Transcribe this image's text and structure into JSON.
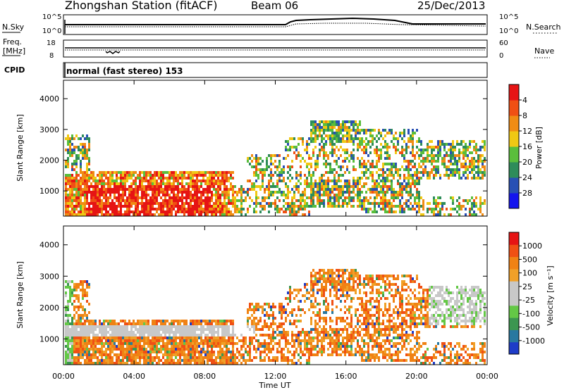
{
  "header": {
    "title": "Zhongshan Station (fitACF)",
    "beam": "Beam 06",
    "date": "25/Dec/2013"
  },
  "noise_panel": {
    "left_label": "N.Sky",
    "right_label": "N.Search",
    "ticks_left": [
      "10^5",
      "10^0"
    ],
    "ticks_right": [
      "10^5",
      "10^0"
    ]
  },
  "freq_panel": {
    "left_label": [
      "Freq.",
      "[MHz]"
    ],
    "right_label": "Nave",
    "ticks_left": [
      "18",
      "8"
    ],
    "ticks_right": [
      "60",
      "0"
    ]
  },
  "cpid": {
    "label": "CPID",
    "value": "normal (fast stereo) 153"
  },
  "chart_data": [
    {
      "type": "heatmap",
      "name": "power",
      "ylabel": "Slant Range [km]",
      "ylim": [
        180,
        4600
      ],
      "yticks": [
        "1000",
        "2000",
        "3000",
        "4000"
      ],
      "colorbar_label": "Power [dB]",
      "colorbar_ticks": [
        "4",
        "8",
        "12",
        "16",
        "20",
        "24",
        "28"
      ],
      "colors": [
        "#1414ee",
        "#2850b4",
        "#2e8c5a",
        "#5abe3c",
        "#f0c814",
        "#f08c14",
        "#f05014",
        "#e61414"
      ]
    },
    {
      "type": "heatmap",
      "name": "velocity",
      "ylabel": "Slant Range [km]",
      "ylim": [
        180,
        4600
      ],
      "yticks": [
        "1000",
        "2000",
        "3000",
        "4000"
      ],
      "colorbar_label": "Velocity [m s⁻¹]",
      "colorbar_ticks": [
        "1000",
        "500",
        "100",
        "25",
        "-25",
        "-100",
        "-500",
        "-1000"
      ],
      "colors": [
        "#1e3cc8",
        "#2878a0",
        "#3c9650",
        "#64c846",
        "#c8c8c8",
        "#c8c8c8",
        "#f0a028",
        "#f08214",
        "#f05014",
        "#e61414"
      ]
    }
  ],
  "xaxis": {
    "label": "Time UT",
    "ticks": [
      "00:00",
      "04:00",
      "08:00",
      "12:00",
      "16:00",
      "20:00",
      "00:00"
    ]
  }
}
